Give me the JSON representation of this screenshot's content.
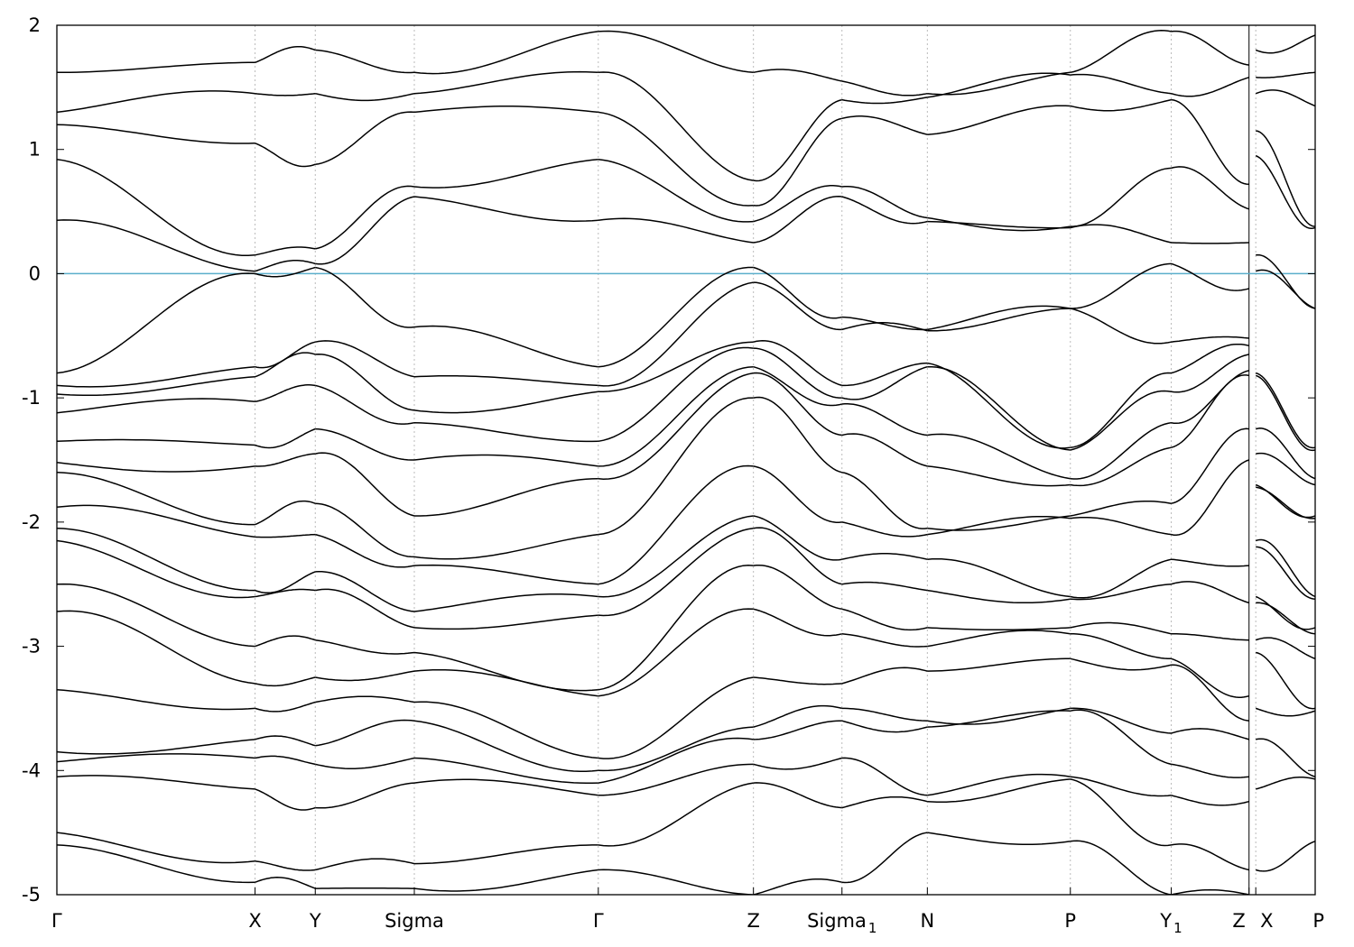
{
  "chart_data": {
    "type": "line",
    "title": "",
    "xlabel": "",
    "ylabel": "",
    "ylim": [
      -5,
      2
    ],
    "yticks": [
      2,
      1,
      0,
      -1,
      -2,
      -3,
      -4,
      -5
    ],
    "ytick_labels": [
      "2",
      "1",
      "0",
      "-1",
      "-2",
      "-3",
      "-4",
      "-5"
    ],
    "xlim": [
      0,
      1.4
    ],
    "kpoints": [
      {
        "label": "Γ",
        "sub": "",
        "x": 0.0
      },
      {
        "label": "X",
        "sub": "",
        "x": 0.2205
      },
      {
        "label": "Y",
        "sub": "",
        "x": 0.2875
      },
      {
        "label": "Sigma",
        "sub": "",
        "x": 0.3977
      },
      {
        "label": "Γ",
        "sub": "",
        "x": 0.6024
      },
      {
        "label": "Z",
        "sub": "",
        "x": 0.775
      },
      {
        "label": "Sigma",
        "sub": "1",
        "x": 0.8735
      },
      {
        "label": "N",
        "sub": "",
        "x": 0.9685
      },
      {
        "label": "P",
        "sub": "",
        "x": 1.1276
      },
      {
        "label": "Y",
        "sub": "1",
        "x": 1.2398
      },
      {
        "label": "Z",
        "sub": "",
        "x": 1.3264
      },
      {
        "label": "X",
        "sub": "",
        "x": 1.3339
      },
      {
        "label": "P",
        "sub": "",
        "x": 1.4
      }
    ],
    "discontinuity_x": 1.3264,
    "fermi_level": 0,
    "grid": "vertical dotted at k-points",
    "colors": {
      "bands": "#000000",
      "fermi": "#5aaecb",
      "grid": "#bbbbbb"
    },
    "segments": [
      {
        "from": 0.0,
        "to": 0.2205,
        "start": [
          1.62,
          1.3,
          1.2,
          0.92,
          0.43,
          -0.8,
          -0.9,
          -0.97,
          -1.12,
          -1.35,
          -1.52,
          -1.6,
          -1.88,
          -2.05,
          -2.15,
          -2.5,
          -2.72,
          -3.35,
          -3.85,
          -3.93,
          -4.05,
          -4.5,
          -4.6
        ],
        "end": [
          1.7,
          1.45,
          1.05,
          0.15,
          0.02,
          0.0,
          -0.75,
          -0.83,
          -1.03,
          -1.38,
          -1.55,
          -2.02,
          -2.12,
          -2.55,
          -2.6,
          -3.0,
          -3.3,
          -3.5,
          -3.75,
          -3.9,
          -4.15,
          -4.73,
          -4.9
        ]
      },
      {
        "from": 0.2205,
        "to": 0.2875,
        "start": [
          1.7,
          1.45,
          1.05,
          0.15,
          0.02,
          0.0,
          -0.75,
          -0.83,
          -1.03,
          -1.38,
          -1.55,
          -2.02,
          -2.12,
          -2.55,
          -2.6,
          -3.0,
          -3.3,
          -3.5,
          -3.75,
          -3.9,
          -4.15,
          -4.73,
          -4.9
        ],
        "end": [
          1.8,
          1.45,
          0.88,
          0.2,
          0.08,
          0.05,
          -0.55,
          -0.65,
          -0.9,
          -1.25,
          -1.45,
          -1.85,
          -2.1,
          -2.4,
          -2.55,
          -2.95,
          -3.25,
          -3.45,
          -3.8,
          -3.95,
          -4.3,
          -4.8,
          -4.95
        ]
      },
      {
        "from": 0.2875,
        "to": 0.3977,
        "start": [
          1.8,
          1.45,
          0.88,
          0.2,
          0.08,
          0.05,
          -0.55,
          -0.65,
          -0.9,
          -1.25,
          -1.45,
          -1.85,
          -2.1,
          -2.4,
          -2.55,
          -2.95,
          -3.25,
          -3.45,
          -3.8,
          -3.95,
          -4.3,
          -4.8,
          -4.95
        ],
        "end": [
          1.62,
          1.45,
          1.3,
          0.7,
          0.62,
          -0.43,
          -0.83,
          -1.1,
          -1.2,
          -1.5,
          -1.95,
          -2.28,
          -2.35,
          -2.72,
          -2.85,
          -3.05,
          -3.2,
          -3.45,
          -3.6,
          -3.9,
          -4.1,
          -4.75,
          -4.95
        ]
      },
      {
        "from": 0.3977,
        "to": 0.6024,
        "start": [
          1.62,
          1.45,
          1.3,
          0.7,
          0.62,
          -0.43,
          -0.83,
          -1.1,
          -1.2,
          -1.5,
          -1.95,
          -2.28,
          -2.35,
          -2.72,
          -2.85,
          -3.05,
          -3.2,
          -3.45,
          -3.6,
          -3.9,
          -4.1,
          -4.75,
          -4.95
        ],
        "end": [
          1.95,
          1.62,
          1.3,
          0.92,
          0.43,
          -0.75,
          -0.9,
          -0.95,
          -1.35,
          -1.55,
          -1.65,
          -2.1,
          -2.5,
          -2.6,
          -2.75,
          -3.35,
          -3.4,
          -3.9,
          -4.0,
          -4.1,
          -4.2,
          -4.6,
          -4.8
        ]
      },
      {
        "from": 0.6024,
        "to": 0.775,
        "start": [
          1.95,
          1.62,
          1.3,
          0.92,
          0.43,
          -0.75,
          -0.9,
          -0.95,
          -1.35,
          -1.55,
          -1.65,
          -2.1,
          -2.5,
          -2.6,
          -2.75,
          -3.35,
          -3.4,
          -3.9,
          -4.0,
          -4.1,
          -4.2,
          -4.6,
          -4.8
        ],
        "end": [
          1.62,
          0.75,
          0.55,
          0.42,
          0.25,
          0.05,
          -0.07,
          -0.55,
          -0.6,
          -0.75,
          -0.8,
          -1.0,
          -1.55,
          -1.95,
          -2.05,
          -2.35,
          -2.7,
          -3.25,
          -3.65,
          -3.75,
          -3.95,
          -4.1,
          -5.0
        ]
      },
      {
        "from": 0.775,
        "to": 0.8735,
        "start": [
          1.62,
          0.75,
          0.55,
          0.42,
          0.25,
          0.05,
          -0.07,
          -0.55,
          -0.6,
          -0.75,
          -0.8,
          -1.0,
          -1.55,
          -1.95,
          -2.05,
          -2.35,
          -2.7,
          -3.25,
          -3.65,
          -3.75,
          -3.95,
          -4.1,
          -5.0
        ],
        "end": [
          1.55,
          1.4,
          1.25,
          0.7,
          0.62,
          -0.35,
          -0.45,
          -0.9,
          -1.0,
          -1.05,
          -1.3,
          -1.6,
          -2.0,
          -2.3,
          -2.5,
          -2.7,
          -2.9,
          -3.3,
          -3.5,
          -3.6,
          -3.9,
          -4.3,
          -4.9
        ]
      },
      {
        "from": 0.8735,
        "to": 0.9685,
        "start": [
          1.55,
          1.4,
          1.25,
          0.7,
          0.62,
          -0.35,
          -0.45,
          -0.9,
          -1.0,
          -1.05,
          -1.3,
          -1.6,
          -2.0,
          -2.3,
          -2.5,
          -2.7,
          -2.9,
          -3.3,
          -3.5,
          -3.6,
          -3.9,
          -4.3,
          -4.9
        ],
        "end": [
          1.45,
          1.42,
          1.12,
          0.45,
          0.42,
          -0.45,
          -0.46,
          -0.72,
          -0.75,
          -1.3,
          -1.55,
          -2.05,
          -2.1,
          -2.3,
          -2.55,
          -2.85,
          -3.0,
          -3.2,
          -3.6,
          -3.65,
          -4.2,
          -4.25,
          -4.5
        ]
      },
      {
        "from": 0.9685,
        "to": 1.1276,
        "start": [
          1.45,
          1.42,
          1.12,
          0.45,
          0.42,
          -0.45,
          -0.46,
          -0.72,
          -0.75,
          -1.3,
          -1.55,
          -2.05,
          -2.1,
          -2.3,
          -2.55,
          -2.85,
          -3.0,
          -3.2,
          -3.6,
          -3.65,
          -4.2,
          -4.25,
          -4.5
        ],
        "end": [
          1.62,
          1.6,
          1.35,
          0.38,
          0.37,
          -0.28,
          -0.28,
          -1.4,
          -1.42,
          -1.65,
          -1.7,
          -1.95,
          -1.97,
          -2.6,
          -2.62,
          -2.85,
          -2.9,
          -3.1,
          -3.5,
          -3.52,
          -4.05,
          -4.07,
          -4.57
        ]
      },
      {
        "from": 1.1276,
        "to": 1.2398,
        "start": [
          1.62,
          1.6,
          1.35,
          0.38,
          0.37,
          -0.28,
          -0.28,
          -1.4,
          -1.42,
          -1.65,
          -1.7,
          -1.95,
          -1.97,
          -2.6,
          -2.62,
          -2.85,
          -2.9,
          -3.1,
          -3.5,
          -3.52,
          -4.05,
          -4.07,
          -4.57
        ],
        "end": [
          1.95,
          1.45,
          1.4,
          0.85,
          0.25,
          0.08,
          -0.55,
          -0.8,
          -0.95,
          -1.2,
          -1.4,
          -1.85,
          -2.1,
          -2.3,
          -2.5,
          -2.9,
          -3.1,
          -3.15,
          -3.7,
          -3.95,
          -4.2,
          -4.6,
          -5.0
        ]
      },
      {
        "from": 1.2398,
        "to": 1.3264,
        "start": [
          1.95,
          1.45,
          1.4,
          0.85,
          0.25,
          0.08,
          -0.55,
          -0.8,
          -0.95,
          -1.2,
          -1.4,
          -1.85,
          -2.1,
          -2.3,
          -2.5,
          -2.9,
          -3.1,
          -3.15,
          -3.7,
          -3.95,
          -4.2,
          -4.6,
          -5.0
        ],
        "end": [
          1.68,
          1.58,
          0.72,
          0.52,
          0.25,
          -0.12,
          -0.52,
          -0.58,
          -0.65,
          -0.78,
          -0.82,
          -1.25,
          -1.5,
          -2.35,
          -2.65,
          -2.95,
          -3.4,
          -3.6,
          -3.75,
          -4.05,
          -4.25,
          -4.8,
          -5.0
        ]
      },
      {
        "from": 1.3339,
        "to": 1.4,
        "start": [
          1.8,
          1.58,
          1.45,
          1.15,
          0.95,
          0.15,
          0.02,
          -0.8,
          -0.82,
          -1.25,
          -1.45,
          -1.7,
          -1.72,
          -2.15,
          -2.2,
          -2.6,
          -2.65,
          -2.95,
          -3.05,
          -3.5,
          -3.75,
          -4.15,
          -4.8
        ],
        "end": [
          1.92,
          1.62,
          1.35,
          0.38,
          0.37,
          -0.28,
          -0.28,
          -1.4,
          -1.42,
          -1.65,
          -1.7,
          -1.95,
          -1.97,
          -2.6,
          -2.62,
          -2.85,
          -2.9,
          -3.1,
          -3.5,
          -3.52,
          -4.05,
          -4.07,
          -4.57
        ]
      }
    ]
  }
}
